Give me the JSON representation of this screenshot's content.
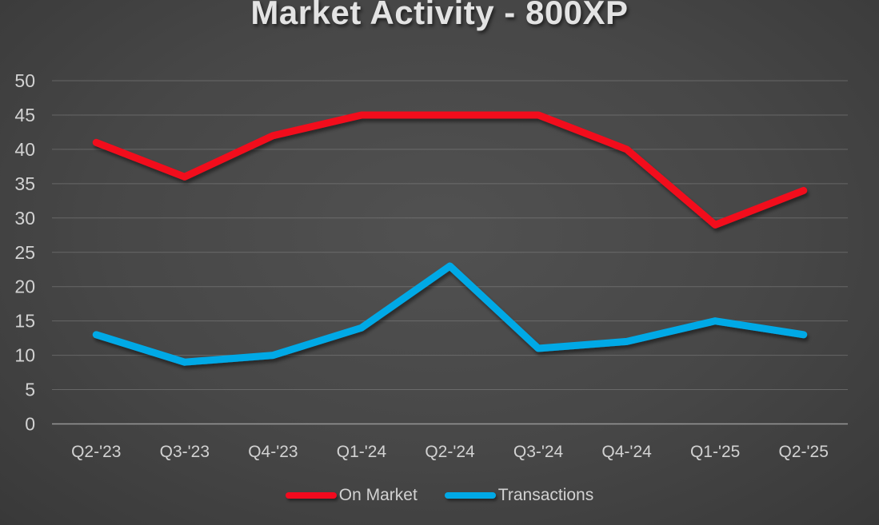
{
  "title": "Market Activity - 800XP",
  "colors": {
    "background_center": "#4f4f4f",
    "background_edge": "#272727",
    "title_text": "#e3e3e3",
    "axis_text": "#d2d2d2",
    "gridline": "#8a8a8a",
    "axis_line": "#a6a6a6",
    "on_market": "#f20a1e",
    "transactions": "#00a9e6"
  },
  "chart_data": {
    "type": "line",
    "title": "Market Activity - 800XP",
    "categories": [
      "Q2-'23",
      "Q3-'23",
      "Q4-'23",
      "Q1-'24",
      "Q2-'24",
      "Q3-'24",
      "Q4-'24",
      "Q1-'25",
      "Q2-'25"
    ],
    "series": [
      {
        "name": "On Market",
        "color": "#f20a1e",
        "values": [
          41,
          36,
          42,
          45,
          45,
          45,
          40,
          29,
          34
        ]
      },
      {
        "name": "Transactions",
        "color": "#00a9e6",
        "values": [
          13,
          9,
          10,
          14,
          23,
          11,
          12,
          15,
          13
        ]
      }
    ],
    "xlabel": "",
    "ylabel": "",
    "ylim": [
      0,
      50
    ],
    "yticks": [
      0,
      5,
      10,
      15,
      20,
      25,
      30,
      35,
      40,
      45,
      50
    ],
    "grid": "horizontal",
    "legend_position": "bottom"
  }
}
